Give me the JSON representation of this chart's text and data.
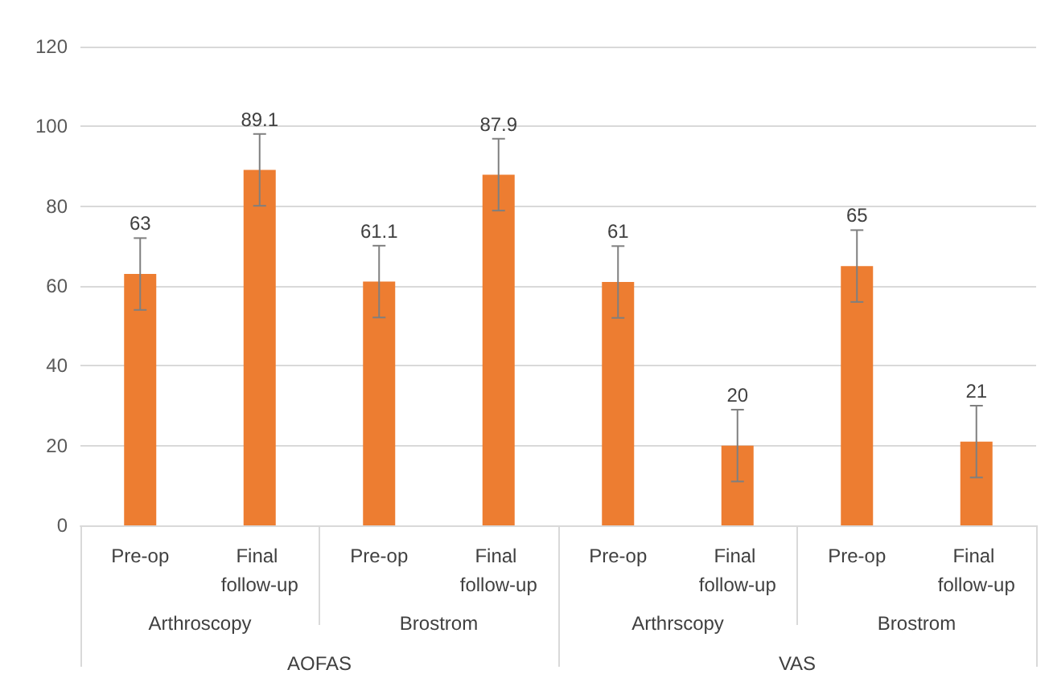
{
  "chart_data": {
    "type": "bar",
    "categories": [
      "Pre-op",
      "Final follow-up",
      "Pre-op",
      "Final follow-up",
      "Pre-op",
      "Final follow-up",
      "Pre-op",
      "Final follow-up"
    ],
    "values": [
      63,
      89.1,
      61.1,
      87.9,
      61,
      20,
      65,
      21
    ],
    "errors": [
      9,
      9,
      9,
      9,
      9,
      9,
      9,
      9
    ],
    "color": "#ed7d31",
    "annotations": [
      "Arthroscopy",
      "Brostrom",
      "Arthrscopy",
      "Brostrom",
      "AOFAS",
      "VAS"
    ],
    "ylim": [
      0,
      120
    ],
    "yticks": [
      0,
      20,
      40,
      60,
      80,
      100,
      120
    ],
    "grid": "y",
    "data_labels": true
  }
}
